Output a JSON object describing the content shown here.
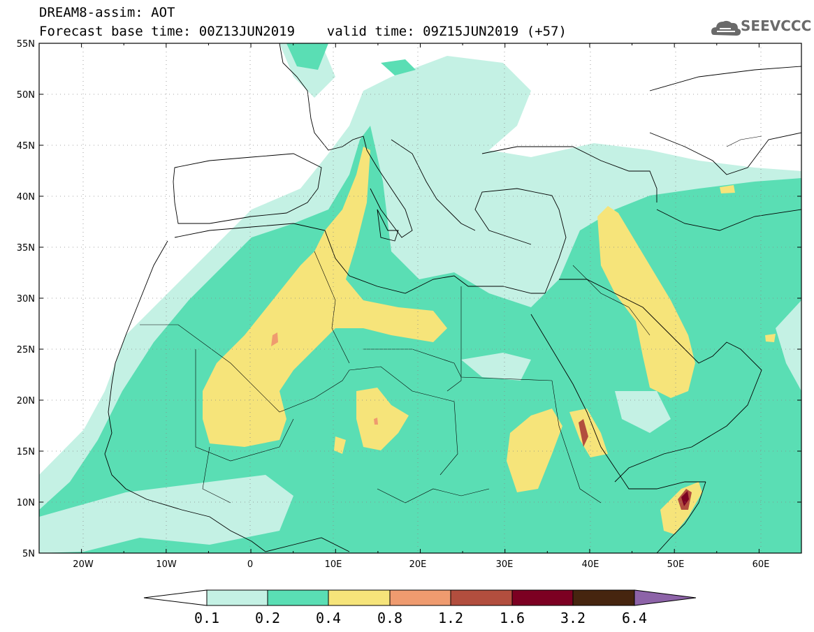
{
  "header": {
    "line1": "DREAM8-assim: AOT",
    "line2": "Forecast base time: 00Z13JUN2019    valid time: 09Z15JUN2019 (+57)"
  },
  "logo": {
    "text": "SEEVCCC",
    "icon": "cloud-icon"
  },
  "map": {
    "lon_range": [
      -25,
      65
    ],
    "lat_range": [
      5,
      55
    ],
    "lat_labels": [
      "55N",
      "50N",
      "45N",
      "40N",
      "35N",
      "30N",
      "25N",
      "20N",
      "15N",
      "10N",
      "5N"
    ],
    "lon_labels": [
      "20W",
      "10W",
      "0",
      "10E",
      "20E",
      "30E",
      "40E",
      "50E",
      "60E"
    ],
    "grid": "dotted"
  },
  "colorbar": {
    "colors": [
      "#ffffff",
      "#c4f1e4",
      "#5adeb4",
      "#f6e47a",
      "#ef9b6f",
      "#b24e3e",
      "#7c0022",
      "#46250f",
      "#8d63a8"
    ],
    "labels": [
      "0.1",
      "0.2",
      "0.4",
      "0.8",
      "1.2",
      "1.6",
      "3.2",
      "6.4"
    ]
  }
}
